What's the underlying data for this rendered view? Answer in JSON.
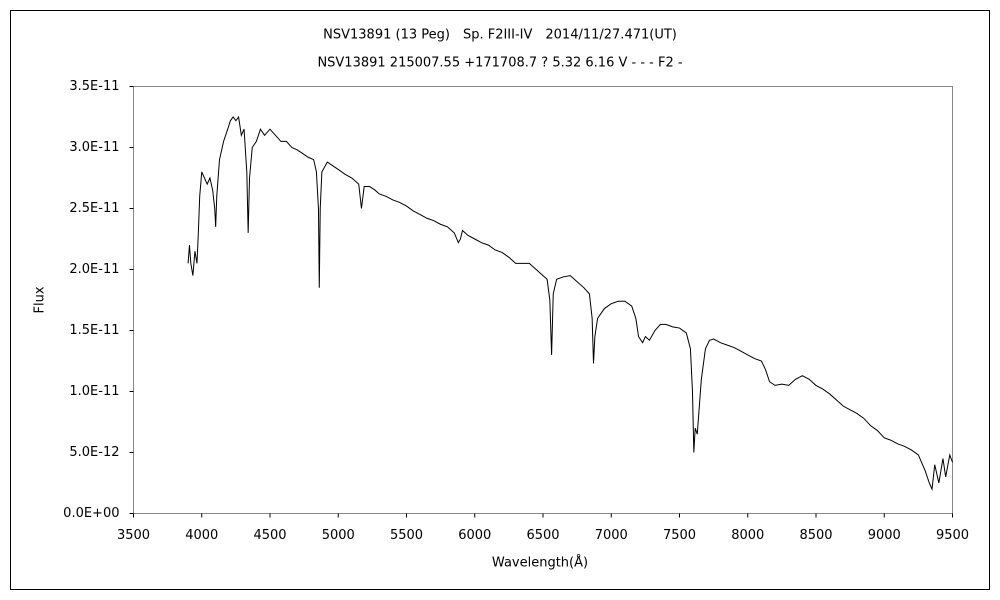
{
  "chart_data": {
    "type": "line",
    "title": "NSV13891 (13 Peg)　Sp. F2III-IV　2014/11/27.471(UT)",
    "subtitle": "NSV13891 215007.55 +171708.7 ? 5.32 6.16 V - - - F2 -",
    "x_label": "Wavelength(Å)",
    "y_label": "Flux",
    "color": "#000000",
    "x": [
      3900,
      3910,
      3920,
      3935,
      3950,
      3965,
      3975,
      3985,
      4000,
      4020,
      4040,
      4060,
      4080,
      4095,
      4102,
      4110,
      4130,
      4160,
      4190,
      4210,
      4230,
      4250,
      4270,
      4290,
      4310,
      4330,
      4340,
      4350,
      4370,
      4400,
      4430,
      4460,
      4500,
      4540,
      4580,
      4620,
      4660,
      4700,
      4740,
      4780,
      4820,
      4840,
      4855,
      4861,
      4868,
      4880,
      4920,
      4960,
      5000,
      5050,
      5100,
      5150,
      5170,
      5190,
      5230,
      5270,
      5300,
      5350,
      5400,
      5450,
      5500,
      5550,
      5600,
      5650,
      5700,
      5750,
      5800,
      5850,
      5880,
      5895,
      5910,
      5950,
      6000,
      6050,
      6100,
      6150,
      6200,
      6250,
      6300,
      6350,
      6400,
      6450,
      6500,
      6530,
      6550,
      6563,
      6575,
      6600,
      6650,
      6700,
      6750,
      6800,
      6840,
      6860,
      6870,
      6880,
      6900,
      6950,
      7000,
      7050,
      7100,
      7150,
      7180,
      7200,
      7230,
      7250,
      7280,
      7320,
      7360,
      7400,
      7450,
      7500,
      7550,
      7580,
      7595,
      7605,
      7615,
      7630,
      7660,
      7690,
      7720,
      7750,
      7800,
      7850,
      7900,
      7950,
      8000,
      8050,
      8100,
      8130,
      8160,
      8200,
      8250,
      8300,
      8350,
      8400,
      8450,
      8500,
      8550,
      8600,
      8650,
      8700,
      8750,
      8800,
      8850,
      8900,
      8950,
      9000,
      9050,
      9100,
      9150,
      9200,
      9250,
      9300,
      9330,
      9350,
      9370,
      9400,
      9430,
      9450,
      9480,
      9500
    ],
    "values": [
      2.05e-11,
      2.2e-11,
      2.05e-11,
      1.95e-11,
      2.15e-11,
      2.05e-11,
      2.3e-11,
      2.6e-11,
      2.8e-11,
      2.75e-11,
      2.7e-11,
      2.75e-11,
      2.65e-11,
      2.5e-11,
      2.35e-11,
      2.6e-11,
      2.9e-11,
      3.05e-11,
      3.15e-11,
      3.22e-11,
      3.25e-11,
      3.22e-11,
      3.25e-11,
      3.1e-11,
      3.15e-11,
      2.8e-11,
      2.3e-11,
      2.75e-11,
      3e-11,
      3.05e-11,
      3.15e-11,
      3.1e-11,
      3.15e-11,
      3.1e-11,
      3.05e-11,
      3.05e-11,
      3e-11,
      2.98e-11,
      2.95e-11,
      2.92e-11,
      2.9e-11,
      2.8e-11,
      2.5e-11,
      1.85e-11,
      2.5e-11,
      2.8e-11,
      2.88e-11,
      2.85e-11,
      2.82e-11,
      2.78e-11,
      2.75e-11,
      2.7e-11,
      2.5e-11,
      2.68e-11,
      2.68e-11,
      2.65e-11,
      2.62e-11,
      2.6e-11,
      2.57e-11,
      2.55e-11,
      2.52e-11,
      2.48e-11,
      2.45e-11,
      2.42e-11,
      2.4e-11,
      2.37e-11,
      2.35e-11,
      2.3e-11,
      2.22e-11,
      2.25e-11,
      2.32e-11,
      2.28e-11,
      2.25e-11,
      2.22e-11,
      2.2e-11,
      2.16e-11,
      2.14e-11,
      2.1e-11,
      2.05e-11,
      2.05e-11,
      2.05e-11,
      2e-11,
      1.95e-11,
      1.92e-11,
      1.75e-11,
      1.3e-11,
      1.8e-11,
      1.92e-11,
      1.94e-11,
      1.95e-11,
      1.9e-11,
      1.85e-11,
      1.8e-11,
      1.6e-11,
      1.23e-11,
      1.45e-11,
      1.6e-11,
      1.68e-11,
      1.72e-11,
      1.74e-11,
      1.74e-11,
      1.7e-11,
      1.6e-11,
      1.45e-11,
      1.4e-11,
      1.45e-11,
      1.42e-11,
      1.5e-11,
      1.55e-11,
      1.55e-11,
      1.53e-11,
      1.52e-11,
      1.48e-11,
      1.35e-11,
      1e-11,
      5e-12,
      7e-12,
      6.5e-12,
      1.1e-11,
      1.35e-11,
      1.42e-11,
      1.43e-11,
      1.4e-11,
      1.38e-11,
      1.36e-11,
      1.33e-11,
      1.3e-11,
      1.27e-11,
      1.25e-11,
      1.18e-11,
      1.08e-11,
      1.05e-11,
      1.06e-11,
      1.05e-11,
      1.1e-11,
      1.13e-11,
      1.1e-11,
      1.05e-11,
      1.02e-11,
      9.8e-12,
      9.3e-12,
      8.8e-12,
      8.5e-12,
      8.2e-12,
      7.8e-12,
      7.2e-12,
      6.8e-12,
      6.2e-12,
      6e-12,
      5.7e-12,
      5.5e-12,
      5.2e-12,
      4.8e-12,
      3.5e-12,
      2.5e-12,
      2e-12,
      4e-12,
      2.5e-12,
      4.5e-12,
      3e-12,
      4.8e-12,
      4.2e-12
    ],
    "xlim": [
      3500,
      9500
    ],
    "xticks": [
      3500,
      4000,
      4500,
      5000,
      5500,
      6000,
      6500,
      7000,
      7500,
      8000,
      8500,
      9000,
      9500
    ],
    "ylim": [
      0,
      3.5e-11
    ],
    "yticks": [
      {
        "value": 0,
        "label": "0.0E+00"
      },
      {
        "value": 5e-12,
        "label": "5.0E-12"
      },
      {
        "value": 1e-11,
        "label": "1.0E-11"
      },
      {
        "value": 1.5e-11,
        "label": "1.5E-11"
      },
      {
        "value": 2e-11,
        "label": "2.0E-11"
      },
      {
        "value": 2.5e-11,
        "label": "2.5E-11"
      },
      {
        "value": 3e-11,
        "label": "3.0E-11"
      },
      {
        "value": 3.5e-11,
        "label": "3.5E-11"
      }
    ]
  }
}
